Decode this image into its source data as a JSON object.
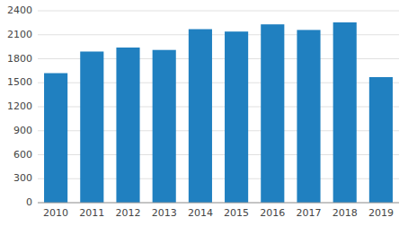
{
  "chart_data": {
    "type": "bar",
    "categories": [
      "2010",
      "2011",
      "2012",
      "2013",
      "2014",
      "2015",
      "2016",
      "2017",
      "2018",
      "2019"
    ],
    "values": [
      1620,
      1890,
      1940,
      1910,
      2170,
      2140,
      2230,
      2160,
      2255,
      1570
    ],
    "color": "#2080c0",
    "ylim": [
      0,
      2400
    ],
    "yticks": [
      0,
      300,
      600,
      900,
      1200,
      1500,
      1800,
      2100,
      2400
    ],
    "grid": true
  }
}
